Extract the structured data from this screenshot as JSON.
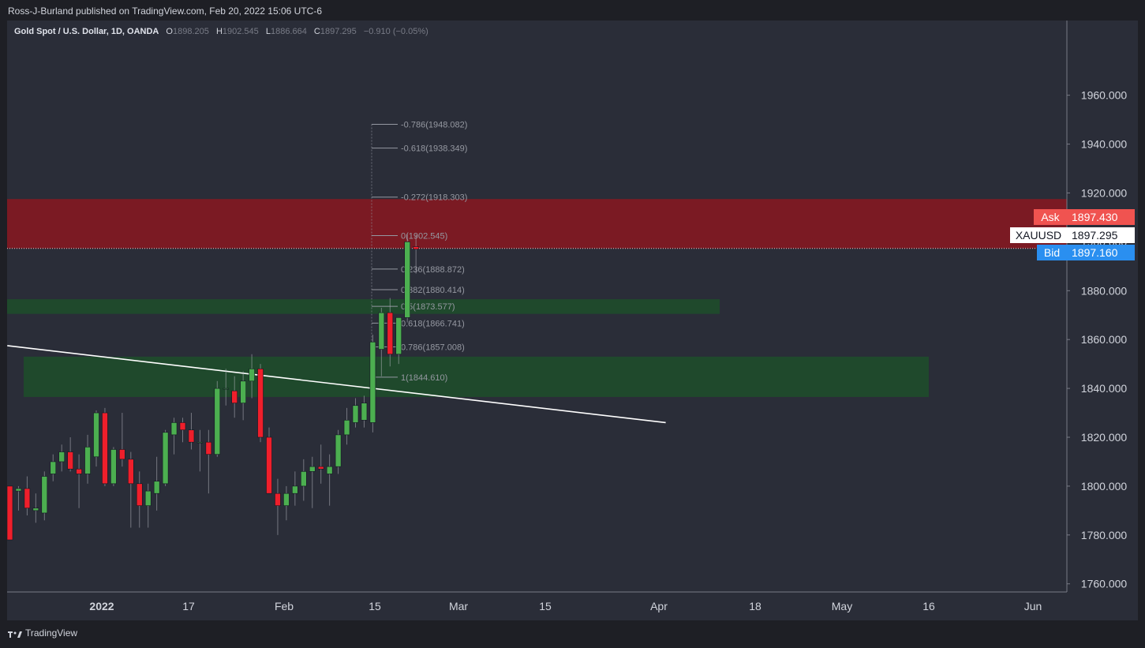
{
  "header": {
    "publisher": "Ross-J-Burland published on TradingView.com, Feb 20, 2022 15:06 UTC-6"
  },
  "legend": {
    "symbol": "Gold Spot / U.S. Dollar, 1D, OANDA",
    "o_label": "O",
    "o_value": "1898.205",
    "h_label": "H",
    "h_value": "1902.545",
    "l_label": "L",
    "l_value": "1886.664",
    "c_label": "C",
    "c_value": "1897.295",
    "change": "−0.910 (−0.05%)"
  },
  "price_tags": {
    "ask_label": "Ask",
    "ask_value": "1897.430",
    "sym_label": "XAUUSD",
    "sym_value": "1897.295",
    "bid_label": "Bid",
    "bid_value": "1897.160"
  },
  "footer": {
    "brand": "TradingView"
  },
  "colors": {
    "up": "#4caf50",
    "down": "#ef1f2b",
    "bg": "#2a2d38",
    "resistance_zone": "#801922",
    "support_zone": "#1e4d2b",
    "ask": "#f05350",
    "bid": "#2a8ff0"
  },
  "chart_data": {
    "type": "candlestick",
    "y_ticks": [
      "1760.000",
      "1780.000",
      "1800.000",
      "1820.000",
      "1840.000",
      "1860.000",
      "1880.000",
      "1900.000",
      "1920.000",
      "1940.000",
      "1960.000"
    ],
    "y_tick_values": [
      1760,
      1780,
      1800,
      1820,
      1840,
      1860,
      1880,
      1900,
      1920,
      1940,
      1960
    ],
    "x_ticks": [
      "2022",
      "17",
      "Feb",
      "15",
      "Mar",
      "15",
      "Apr",
      "18",
      "May",
      "16",
      "Jun"
    ],
    "ylim": [
      1757,
      1988
    ],
    "candles": [
      {
        "o": 1800,
        "h": 1800,
        "l": 1778,
        "c": 1778
      },
      {
        "o": 1798,
        "h": 1800,
        "l": 1790,
        "c": 1799
      },
      {
        "o": 1799,
        "h": 1804,
        "l": 1788,
        "c": 1791
      },
      {
        "o": 1790,
        "h": 1797,
        "l": 1785,
        "c": 1791
      },
      {
        "o": 1789,
        "h": 1806,
        "l": 1786,
        "c": 1804
      },
      {
        "o": 1805,
        "h": 1813,
        "l": 1802,
        "c": 1810
      },
      {
        "o": 1810,
        "h": 1817,
        "l": 1806,
        "c": 1814
      },
      {
        "o": 1814,
        "h": 1820,
        "l": 1806,
        "c": 1807
      },
      {
        "o": 1807,
        "h": 1813,
        "l": 1791,
        "c": 1805
      },
      {
        "o": 1805,
        "h": 1821,
        "l": 1801,
        "c": 1816
      },
      {
        "o": 1812,
        "h": 1831,
        "l": 1808,
        "c": 1830
      },
      {
        "o": 1830,
        "h": 1832,
        "l": 1800,
        "c": 1801
      },
      {
        "o": 1801,
        "h": 1816,
        "l": 1800,
        "c": 1815
      },
      {
        "o": 1815,
        "h": 1830,
        "l": 1808,
        "c": 1811
      },
      {
        "o": 1811,
        "h": 1814,
        "l": 1783,
        "c": 1801
      },
      {
        "o": 1801,
        "h": 1806,
        "l": 1783,
        "c": 1792
      },
      {
        "o": 1792,
        "h": 1801,
        "l": 1783,
        "c": 1798
      },
      {
        "o": 1797,
        "h": 1812,
        "l": 1790,
        "c": 1802
      },
      {
        "o": 1801,
        "h": 1823,
        "l": 1800,
        "c": 1822
      },
      {
        "o": 1821,
        "h": 1828,
        "l": 1813,
        "c": 1826
      },
      {
        "o": 1826,
        "h": 1828,
        "l": 1818,
        "c": 1823
      },
      {
        "o": 1823,
        "h": 1830,
        "l": 1815,
        "c": 1818
      },
      {
        "o": 1818,
        "h": 1823,
        "l": 1806,
        "c": 1818
      },
      {
        "o": 1818,
        "h": 1823,
        "l": 1797,
        "c": 1813
      },
      {
        "o": 1813,
        "h": 1843,
        "l": 1812,
        "c": 1840
      },
      {
        "o": 1840,
        "h": 1848,
        "l": 1833,
        "c": 1840
      },
      {
        "o": 1839,
        "h": 1845,
        "l": 1828,
        "c": 1834
      },
      {
        "o": 1834,
        "h": 1847,
        "l": 1827,
        "c": 1843
      },
      {
        "o": 1843,
        "h": 1854,
        "l": 1836,
        "c": 1848
      },
      {
        "o": 1848,
        "h": 1850,
        "l": 1818,
        "c": 1820
      },
      {
        "o": 1820,
        "h": 1824,
        "l": 1797,
        "c": 1797
      },
      {
        "o": 1797,
        "h": 1803,
        "l": 1780,
        "c": 1792
      },
      {
        "o": 1792,
        "h": 1800,
        "l": 1786,
        "c": 1797
      },
      {
        "o": 1797,
        "h": 1806,
        "l": 1792,
        "c": 1800
      },
      {
        "o": 1800,
        "h": 1811,
        "l": 1794,
        "c": 1806
      },
      {
        "o": 1806,
        "h": 1812,
        "l": 1791,
        "c": 1808
      },
      {
        "o": 1808,
        "h": 1817,
        "l": 1801,
        "c": 1807
      },
      {
        "o": 1805,
        "h": 1813,
        "l": 1792,
        "c": 1808
      },
      {
        "o": 1808,
        "h": 1823,
        "l": 1805,
        "c": 1821
      },
      {
        "o": 1821,
        "h": 1832,
        "l": 1817,
        "c": 1827
      },
      {
        "o": 1826,
        "h": 1836,
        "l": 1824,
        "c": 1833
      },
      {
        "o": 1827,
        "h": 1837,
        "l": 1824,
        "c": 1834
      },
      {
        "o": 1826,
        "h": 1862,
        "l": 1822,
        "c": 1859
      },
      {
        "o": 1856,
        "h": 1873,
        "l": 1845,
        "c": 1871
      },
      {
        "o": 1871,
        "h": 1877,
        "l": 1849,
        "c": 1854
      },
      {
        "o": 1854,
        "h": 1869,
        "l": 1850,
        "c": 1869
      },
      {
        "o": 1869,
        "h": 1903,
        "l": 1867,
        "c": 1900
      },
      {
        "o": 1898,
        "h": 1903,
        "l": 1887,
        "c": 1897
      }
    ],
    "zones": [
      {
        "from": 1897.3,
        "to": 1917.5,
        "kind": "resistance"
      },
      {
        "from": 1870.5,
        "to": 1876.5,
        "kind": "support"
      },
      {
        "from": 1836.5,
        "to": 1853,
        "kind": "support"
      }
    ],
    "trendline": {
      "from_bar": -0.3,
      "from_price": 1857.5,
      "to_bar": 75.9,
      "to_price": 1826
    },
    "fib_levels": [
      {
        "label": "-0.786(1948.082)",
        "price": 1948.082
      },
      {
        "label": "-0.618(1938.349)",
        "price": 1938.349
      },
      {
        "label": "-0.272(1918.303)",
        "price": 1918.303
      },
      {
        "label": "0(1902.545)",
        "price": 1902.545
      },
      {
        "label": "0.236(1888.872)",
        "price": 1888.872
      },
      {
        "label": "0.382(1880.414)",
        "price": 1880.414
      },
      {
        "label": "0.5(1873.577)",
        "price": 1873.577
      },
      {
        "label": "0.618(1866.741)",
        "price": 1866.741
      },
      {
        "label": "0.786(1857.008)",
        "price": 1857.008
      },
      {
        "label": "1(1844.610)",
        "price": 1844.61
      }
    ],
    "last_price": 1897.295
  }
}
